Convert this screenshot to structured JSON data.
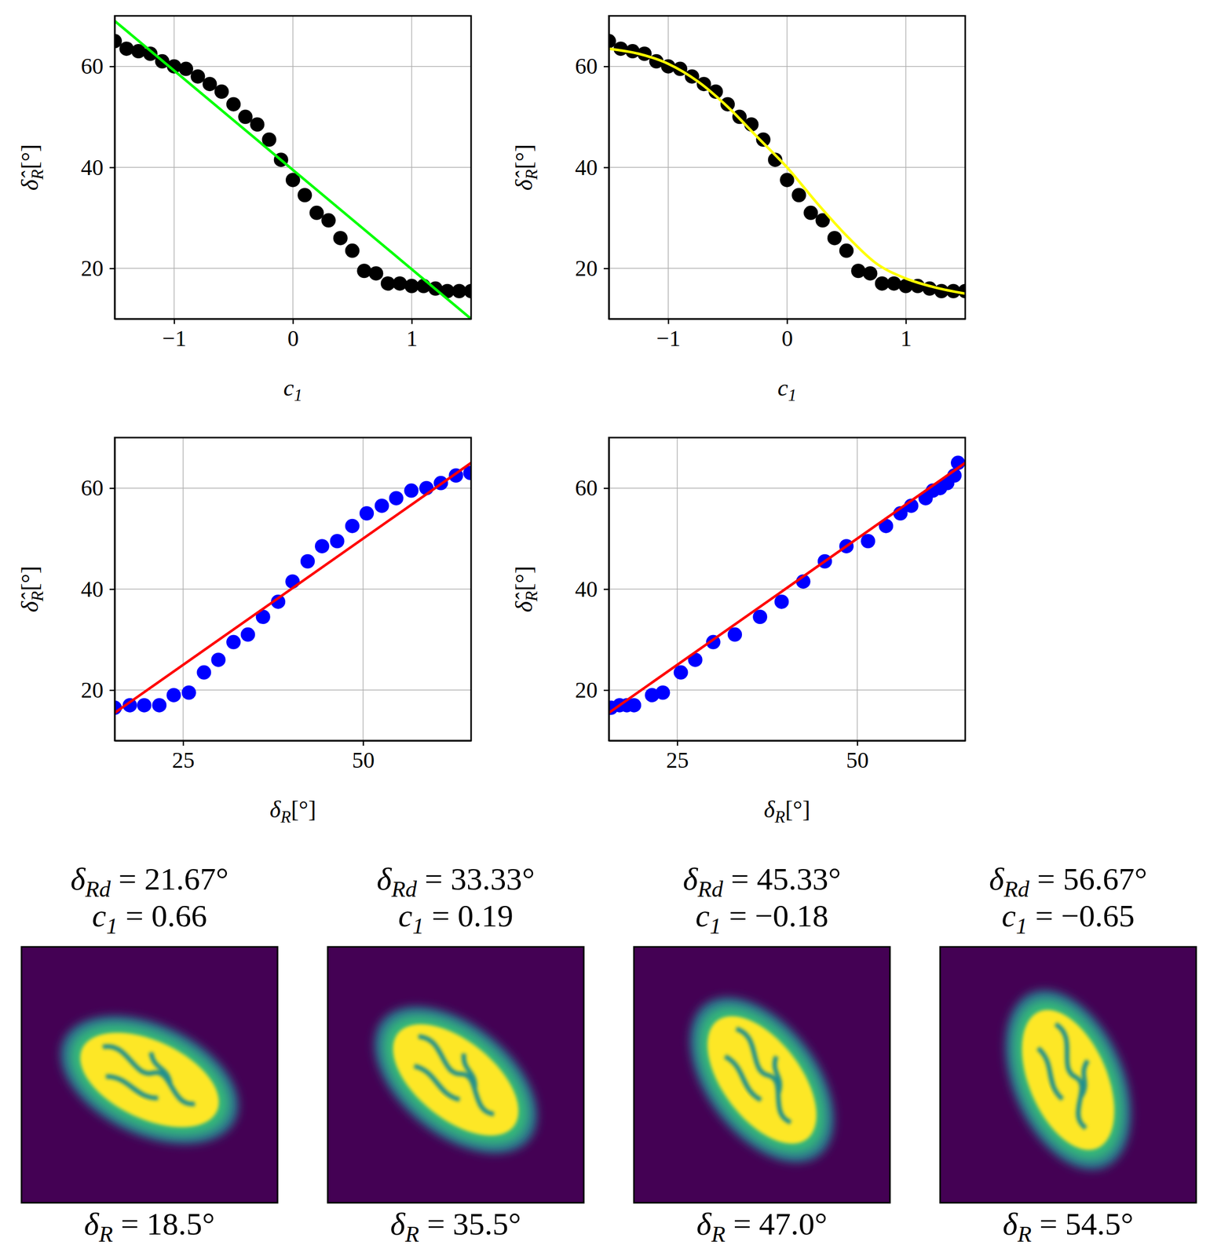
{
  "chart_data": [
    {
      "type": "scatter",
      "xlabel": "c1",
      "ylabel": "δ̂R[°]",
      "xlim": [
        -1.5,
        1.5
      ],
      "ylim": [
        10,
        70
      ],
      "xticks": [
        {
          "value": -1,
          "label": "−1"
        },
        0,
        1
      ],
      "yticks": [
        20,
        40,
        60
      ],
      "grid": true,
      "series": [
        {
          "type": "scatter",
          "marker": "circle",
          "color": "#000000",
          "x": [
            -1.5,
            -1.4,
            -1.3,
            -1.2,
            -1.1,
            -1.0,
            -0.9,
            -0.8,
            -0.7,
            -0.6,
            -0.5,
            -0.4,
            -0.3,
            -0.2,
            -0.1,
            0,
            0.1,
            0.2,
            0.3,
            0.4,
            0.5,
            0.6,
            0.7,
            0.8,
            0.9,
            1.0,
            1.1,
            1.2,
            1.3,
            1.4,
            1.5
          ],
          "values": [
            65,
            63.5,
            63,
            62.5,
            61,
            60,
            59.5,
            58,
            56.5,
            55,
            52.5,
            50,
            48.5,
            45.5,
            41.5,
            37.5,
            34.5,
            31,
            29.5,
            26,
            23.5,
            19.5,
            19,
            17,
            17,
            16.5,
            16.5,
            16,
            15.5,
            15.5,
            15.5
          ]
        },
        {
          "type": "line",
          "color": "#00ff00",
          "x": [
            -1.5,
            1.5
          ],
          "values": [
            69,
            10
          ]
        }
      ]
    },
    {
      "type": "scatter",
      "xlabel": "c1",
      "ylabel": "δ̂R[°]",
      "xlim": [
        -1.5,
        1.5
      ],
      "ylim": [
        10,
        70
      ],
      "xticks": [
        {
          "value": -1,
          "label": "−1"
        },
        0,
        1
      ],
      "yticks": [
        20,
        40,
        60
      ],
      "grid": true,
      "series": [
        {
          "type": "scatter",
          "marker": "circle",
          "color": "#000000",
          "x": [
            -1.5,
            -1.4,
            -1.3,
            -1.2,
            -1.1,
            -1.0,
            -0.9,
            -0.8,
            -0.7,
            -0.6,
            -0.5,
            -0.4,
            -0.3,
            -0.2,
            -0.1,
            0,
            0.1,
            0.2,
            0.3,
            0.4,
            0.5,
            0.6,
            0.7,
            0.8,
            0.9,
            1.0,
            1.1,
            1.2,
            1.3,
            1.4,
            1.5
          ],
          "values": [
            65,
            63.5,
            63,
            62.5,
            61,
            60,
            59.5,
            58,
            56.5,
            55,
            52.5,
            50,
            48.5,
            45.5,
            41.5,
            37.5,
            34.5,
            31,
            29.5,
            26,
            23.5,
            19.5,
            19,
            17,
            17,
            16.5,
            16.5,
            16,
            15.5,
            15.5,
            15.5
          ]
        },
        {
          "type": "line",
          "color": "#ffff00",
          "x": [
            -1.5,
            -1.25,
            -1,
            -0.75,
            -0.5,
            -0.25,
            0,
            0.25,
            0.5,
            0.75,
            1,
            1.25,
            1.5
          ],
          "values": [
            63.5,
            62.5,
            60.5,
            57,
            52,
            46,
            40,
            33,
            26.5,
            21,
            18,
            16.2,
            15
          ]
        }
      ]
    },
    {
      "type": "scatter",
      "xlabel": "δR[°]",
      "ylabel": "δ̂R[°]",
      "xlim": [
        15.5,
        65
      ],
      "ylim": [
        10,
        70
      ],
      "xticks": [
        25,
        50
      ],
      "yticks": [
        20,
        40,
        60
      ],
      "grid": true,
      "series": [
        {
          "type": "scatter",
          "marker": "circle",
          "color": "#0000ff",
          "x": [
            15.5,
            17.6,
            19.6,
            21.7,
            23.7,
            25.8,
            27.9,
            29.9,
            32.0,
            34.0,
            36.1,
            38.2,
            40.2,
            42.3,
            44.3,
            46.4,
            48.5,
            50.5,
            52.6,
            54.6,
            56.7,
            58.8,
            60.8,
            62.9,
            64.9
          ],
          "values": [
            16.5,
            17,
            17,
            17,
            19,
            19.5,
            23.5,
            26,
            29.5,
            31,
            34.5,
            37.5,
            41.5,
            45.5,
            48.5,
            49.5,
            52.5,
            55,
            56.5,
            58,
            59.5,
            60,
            61,
            62.5,
            63
          ]
        },
        {
          "type": "line",
          "color": "#ff0000",
          "x": [
            15.5,
            65
          ],
          "values": [
            15.5,
            65
          ]
        }
      ]
    },
    {
      "type": "scatter",
      "xlabel": "δR[°]",
      "ylabel": "δ̂R[°]",
      "xlim": [
        15.5,
        65
      ],
      "ylim": [
        10,
        70
      ],
      "xticks": [
        25,
        50
      ],
      "yticks": [
        20,
        40,
        60
      ],
      "grid": true,
      "series": [
        {
          "type": "scatter",
          "marker": "circle",
          "color": "#0000ff",
          "x": [
            15.8,
            17.0,
            18.0,
            19.0,
            21.5,
            23.0,
            25.5,
            27.5,
            30.0,
            33.0,
            36.5,
            39.5,
            42.5,
            45.5,
            48.5,
            51.5,
            54.0,
            56.0,
            57.5,
            59.5,
            60.5,
            61.5,
            62.5,
            63.5,
            64.0
          ],
          "values": [
            16.5,
            17,
            17,
            17,
            19,
            19.5,
            23.5,
            26,
            29.5,
            31,
            34.5,
            37.5,
            41.5,
            45.5,
            48.5,
            49.5,
            52.5,
            55,
            56.5,
            58,
            59.5,
            60,
            61,
            62.5,
            65
          ]
        },
        {
          "type": "line",
          "color": "#ff0000",
          "x": [
            15.5,
            65
          ],
          "values": [
            15.5,
            65
          ]
        }
      ]
    }
  ],
  "images": [
    {
      "title": [
        "δRd = 21.67°",
        "c1 = 0.66"
      ],
      "caption": "δR = 18.5°"
    },
    {
      "title": [
        "δRd = 33.33°",
        "c1 = 0.19"
      ],
      "caption": "δR = 35.5°"
    },
    {
      "title": [
        "δRd = 45.33°",
        "c1 = −0.18"
      ],
      "caption": "δR = 47.0°"
    },
    {
      "title": [
        "δRd = 56.67°",
        "c1 = −0.65"
      ],
      "caption": "δR = 54.5°"
    }
  ]
}
